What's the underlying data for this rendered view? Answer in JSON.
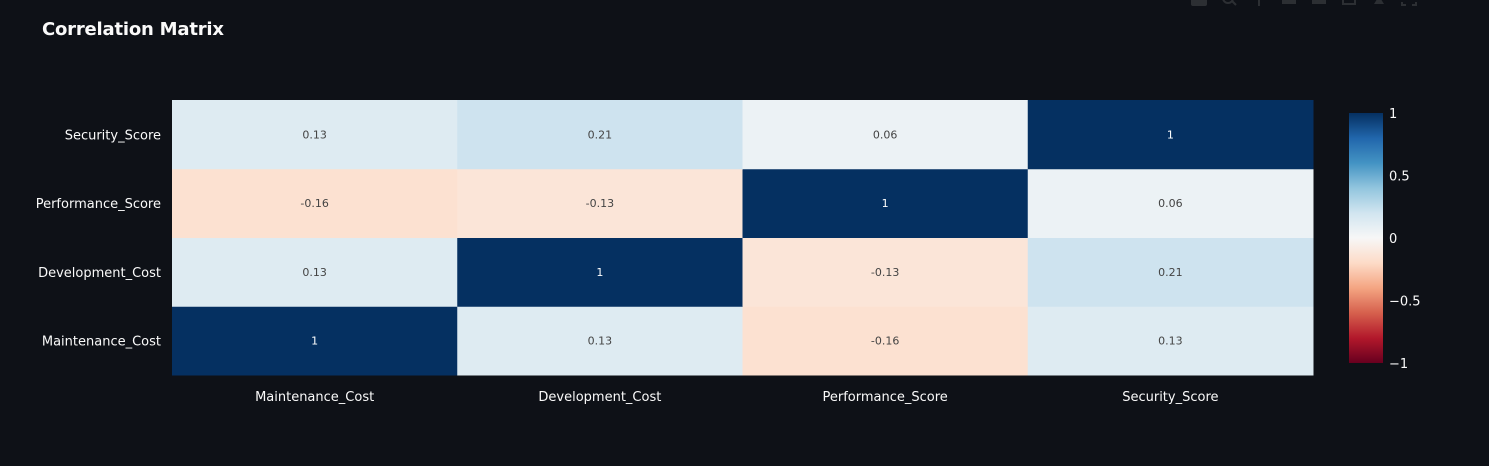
{
  "title": "Correlation Matrix",
  "modebar_icons": [
    "camera-icon",
    "zoom-icon",
    "pan-icon",
    "zoom-in-icon",
    "zoom-out-icon",
    "autoscale-icon",
    "reset-axes-icon",
    "fullscreen-icon"
  ],
  "chart_data": {
    "type": "heatmap",
    "x_categories": [
      "Maintenance_Cost",
      "Development_Cost",
      "Performance_Score",
      "Security_Score"
    ],
    "y_categories": [
      "Maintenance_Cost",
      "Development_Cost",
      "Performance_Score",
      "Security_Score"
    ],
    "values": [
      [
        1,
        0.13,
        -0.16,
        0.13
      ],
      [
        0.13,
        1,
        -0.13,
        0.21
      ],
      [
        -0.16,
        -0.13,
        1,
        0.06
      ],
      [
        0.13,
        0.21,
        0.06,
        1
      ]
    ],
    "labels": [
      [
        "1",
        "0.13",
        "-0.16",
        "0.13"
      ],
      [
        "0.13",
        "1",
        "-0.13",
        "0.21"
      ],
      [
        "-0.16",
        "-0.13",
        "1",
        "0.06"
      ],
      [
        "0.13",
        "0.21",
        "0.06",
        "1"
      ]
    ],
    "colorscale": "RdBu",
    "zmin": -1,
    "zmax": 1,
    "colorbar_ticks": [
      1,
      0.5,
      0,
      -0.5,
      -1
    ],
    "colorbar_tick_labels": [
      "1",
      "0.5",
      "0",
      "−0.5",
      "−1"
    ],
    "background_color": "#0e1117",
    "text_color": "#fafafa"
  }
}
